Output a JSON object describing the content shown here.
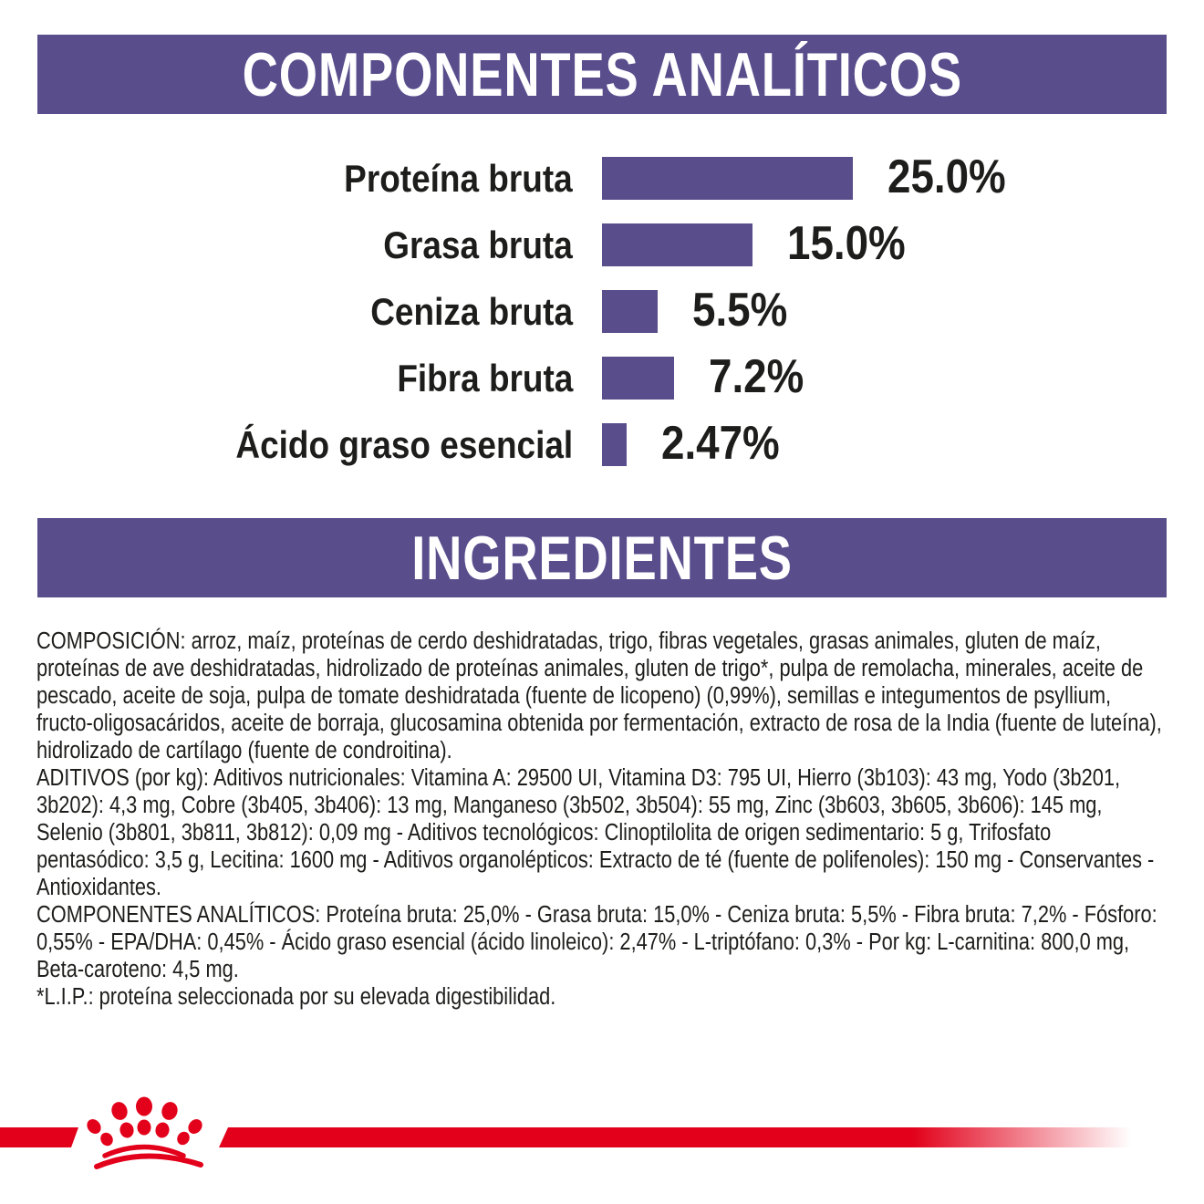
{
  "colors": {
    "purple": "#594d8c",
    "red": "#e2001a",
    "text": "#1d1d1b",
    "banner_text": "#ffffff"
  },
  "banners": {
    "analytical": "COMPONENTES ANALÍTICOS",
    "ingredients": "INGREDIENTES"
  },
  "chart_data": {
    "type": "bar",
    "orientation": "horizontal",
    "title": "COMPONENTES ANALÍTICOS",
    "categories": [
      "Proteína bruta",
      "Grasa bruta",
      "Ceniza bruta",
      "Fibra bruta",
      "Ácido graso esencial"
    ],
    "values": [
      25.0,
      15.0,
      5.5,
      7.2,
      2.47
    ],
    "value_labels": [
      "25.0%",
      "15.0%",
      "5.5%",
      "7.2%",
      "2.47%"
    ],
    "bar_color": "#594d8c",
    "xlim": [
      0,
      25
    ],
    "grid": false,
    "legend": false
  },
  "ingredients": {
    "composition": "COMPOSICIÓN: arroz, maíz, proteínas de cerdo deshidratadas, trigo, fibras vegetales, grasas animales, gluten de maíz, proteínas de ave deshidratadas, hidrolizado de proteínas animales, gluten de trigo*, pulpa de remolacha, minerales, aceite de pescado, aceite de soja, pulpa de tomate deshidratada (fuente de licopeno) (0,99%), semillas e integumentos de psyllium, fructo-oligosacáridos, aceite de borraja, glucosamina obtenida por fermentación, extracto de rosa de la India (fuente de luteína), hidrolizado de cartílago (fuente de condroitina).",
    "additives": "ADITIVOS (por kg): Aditivos nutricionales: Vitamina A: 29500 UI, Vitamina D3: 795 UI, Hierro (3b103): 43 mg, Yodo (3b201, 3b202): 4,3 mg, Cobre (3b405, 3b406): 13 mg, Manganeso (3b502, 3b504): 55 mg, Zinc (3b603, 3b605, 3b606): 145 mg, Selenio (3b801, 3b811, 3b812): 0,09 mg - Aditivos tecnológicos: Clinoptilolita de origen sedimentario: 5 g, Trifosfato pentasódico: 3,5 g, Lecitina: 1600 mg - Aditivos organolépticos: Extracto de té (fuente de polifenoles): 150 mg - Conservantes - Antioxidantes.",
    "analytical_components": "COMPONENTES ANALÍTICOS: Proteína bruta: 25,0% - Grasa bruta: 15,0% - Ceniza bruta: 5,5% - Fibra bruta: 7,2% - Fósforo: 0,55% - EPA/DHA: 0,45% - Ácido graso esencial (ácido linoleico): 2,47% - L-triptófano: 0,3% - Por kg: L-carnitina: 800,0 mg, Beta-caroteno: 4,5 mg.",
    "lip_note": "*L.I.P.: proteína seleccionada por su elevada digestibilidad."
  },
  "footer": {
    "logo": "royal-canin-crown"
  }
}
